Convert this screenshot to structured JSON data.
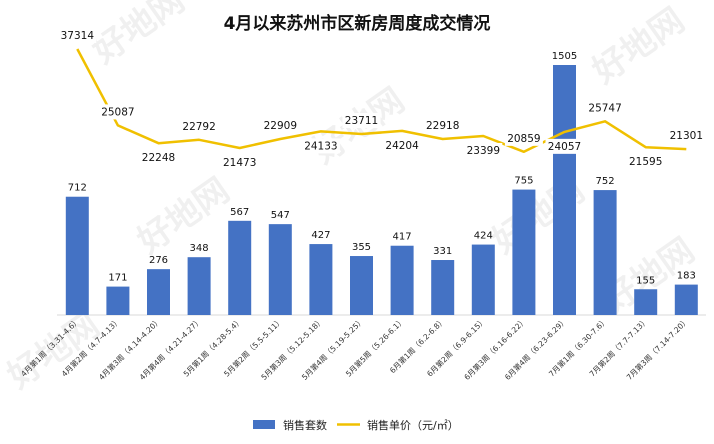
{
  "chart_data": {
    "type": "bar",
    "title": "4月以来苏州市区新房周度成交情况",
    "categories": [
      "4月第1周（3.31-4.6）",
      "4月第2周（4.7-4.13）",
      "4月第3周（4.14-4.20）",
      "4月第4周（4.21-4.27）",
      "5月第1周（4.28-5.4）",
      "5月第2周（5.5-5.11）",
      "5月第3周（5.12-5.18）",
      "5月第4周（5.19-5.25）",
      "5月第5周（5.26-6.1）",
      "6月第1周（6.2-6.8）",
      "6月第2周（6.9-6.15）",
      "6月第3周（6.16-6.22）",
      "6月第4周（6.23-6.29）",
      "7月第1周（6.30-7.6）",
      "7月第2周（7.7-7.13）",
      "7月第3周（7.14-7.20）"
    ],
    "series": [
      {
        "name": "销售套数",
        "type": "bar",
        "color": "#4472C4",
        "values": [
          712,
          171,
          276,
          348,
          567,
          547,
          427,
          355,
          417,
          331,
          424,
          755,
          1505,
          752,
          155,
          183
        ]
      },
      {
        "name": "销售单价（元/㎡）",
        "type": "line",
        "color": "#F0C000",
        "values": [
          37314,
          25087,
          22248,
          22792,
          21473,
          22909,
          24133,
          23711,
          24204,
          22918,
          23399,
          20859,
          24057,
          25747,
          21595,
          21301
        ]
      }
    ],
    "legend": "bottom-center",
    "grid": false,
    "watermark": "好地网"
  }
}
